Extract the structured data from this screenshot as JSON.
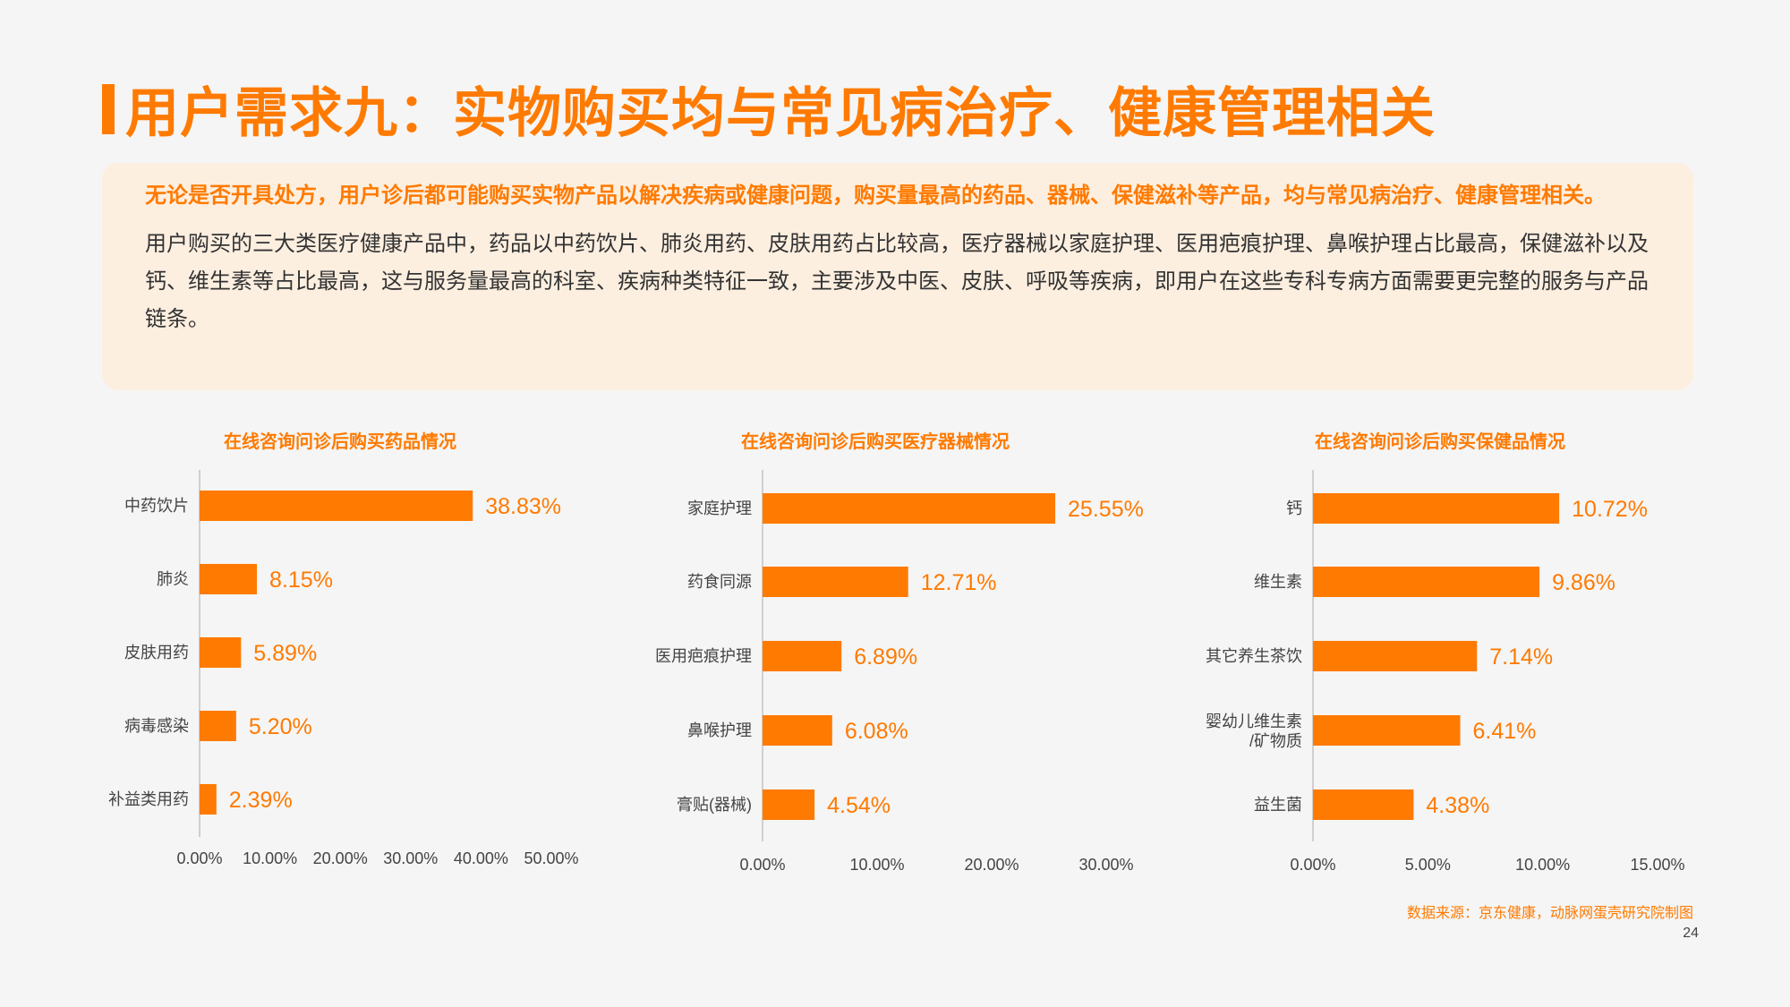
{
  "page": {
    "title": "用户需求九：实物购买均与常见病治疗、健康管理相关",
    "summary_highlight": "无论是否开具处方，用户诊后都可能购买实物产品以解决疾病或健康问题，购买量最高的药品、器械、保健滋补等产品，均与常见病治疗、健康管理相关。",
    "summary_body": "用户购买的三大类医疗健康产品中，药品以中药饮片、肺炎用药、皮肤用药占比较高，医疗器械以家庭护理、医用疤痕护理、鼻喉护理占比最高，保健滋补以及钙、维生素等占比最高，这与服务量最高的科室、疾病种类特征一致，主要涉及中医、皮肤、呼吸等疾病，即用户在这些专科专病方面需要更完整的服务与产品链条。",
    "source": "数据来源：京东健康，动脉网蛋壳研究院制图",
    "page_number": "24",
    "accent_color": "#ff7a00"
  },
  "chart_data": [
    {
      "type": "bar",
      "orientation": "horizontal",
      "title": "在线咨询问诊后购买药品情况",
      "categories": [
        "中药饮片",
        "肺炎",
        "皮肤用药",
        "病毒感染",
        "补益类用药"
      ],
      "values": [
        38.83,
        8.15,
        5.89,
        5.2,
        2.39
      ],
      "value_labels": [
        "38.83%",
        "8.15%",
        "5.89%",
        "5.20%",
        "2.39%"
      ],
      "xlim": [
        0,
        50
      ],
      "ticks": [
        0,
        10,
        20,
        30,
        40,
        50
      ],
      "tick_labels": [
        "0.00%",
        "10.00%",
        "20.00%",
        "30.00%",
        "40.00%",
        "50.00%"
      ],
      "color": "#ff7a00"
    },
    {
      "type": "bar",
      "orientation": "horizontal",
      "title": "在线咨询问诊后购买医疗器械情况",
      "categories": [
        "家庭护理",
        "药食同源",
        "医用疤痕护理",
        "鼻喉护理",
        "膏贴(器械)"
      ],
      "values": [
        25.55,
        12.71,
        6.89,
        6.08,
        4.54
      ],
      "value_labels": [
        "25.55%",
        "12.71%",
        "6.89%",
        "6.08%",
        "4.54%"
      ],
      "xlim": [
        0,
        30
      ],
      "ticks": [
        0,
        10,
        20,
        30
      ],
      "tick_labels": [
        "0.00%",
        "10.00%",
        "20.00%",
        "30.00%"
      ],
      "color": "#ff7a00"
    },
    {
      "type": "bar",
      "orientation": "horizontal",
      "title": "在线咨询问诊后购买保健品情况",
      "categories": [
        "钙",
        "维生素",
        "其它养生茶饮",
        "婴幼儿维生素\n/矿物质",
        "益生菌"
      ],
      "values": [
        10.72,
        9.86,
        7.14,
        6.41,
        4.38
      ],
      "value_labels": [
        "10.72%",
        "9.86%",
        "7.14%",
        "6.41%",
        "4.38%"
      ],
      "xlim": [
        0,
        15
      ],
      "ticks": [
        0,
        5,
        10,
        15
      ],
      "tick_labels": [
        "0.00%",
        "5.00%",
        "10.00%",
        "15.00%"
      ],
      "color": "#ff7a00"
    }
  ]
}
